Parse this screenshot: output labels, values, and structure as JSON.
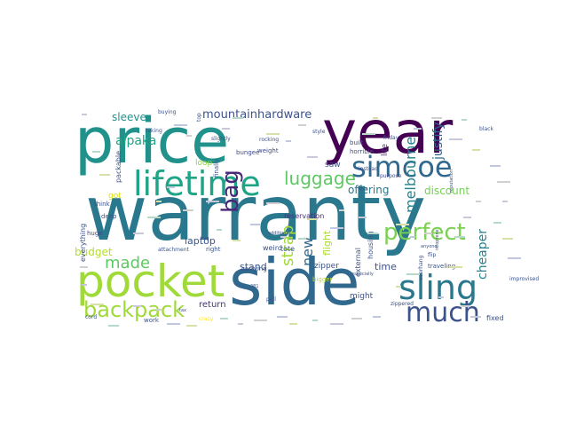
{
  "words": [
    {
      "text": "warranty",
      "color": "#2a788e",
      "rotate": 0
    },
    {
      "text": "price",
      "color": "#21918c",
      "rotate": 0
    },
    {
      "text": "year",
      "color": "#440154",
      "rotate": 0
    },
    {
      "text": "side",
      "color": "#31688e",
      "rotate": 0
    },
    {
      "text": "pocket",
      "color": "#a0da39",
      "rotate": 0
    },
    {
      "text": "lifetime",
      "color": "#20a486",
      "rotate": 0
    },
    {
      "text": "simcoe",
      "color": "#31688e",
      "rotate": 0
    },
    {
      "text": "sling",
      "color": "#2a788e",
      "rotate": 0
    },
    {
      "text": "much",
      "color": "#3b528b",
      "rotate": 0
    },
    {
      "text": "backpack",
      "color": "#a0da39",
      "rotate": 0
    },
    {
      "text": "perfect",
      "color": "#7ad151",
      "rotate": 0
    },
    {
      "text": "bag",
      "color": "#482878",
      "rotate": 90
    },
    {
      "text": "luggage",
      "color": "#5ec962",
      "rotate": 0
    },
    {
      "text": "made",
      "color": "#5ec962",
      "rotate": 0
    },
    {
      "text": "mountainhardware",
      "color": "#3b528b",
      "rotate": 0
    },
    {
      "text": "strap",
      "color": "#a0da39",
      "rotate": 90
    },
    {
      "text": "new",
      "color": "#31688e",
      "rotate": 90
    },
    {
      "text": "melbourne",
      "color": "#26828e",
      "rotate": 90
    },
    {
      "text": "justify",
      "color": "#31688e",
      "rotate": 90
    },
    {
      "text": "cheaper",
      "color": "#26828e",
      "rotate": 90
    },
    {
      "text": "discount",
      "color": "#75d054",
      "rotate": 0
    },
    {
      "text": "offering",
      "color": "#2a788e",
      "rotate": 0
    },
    {
      "text": "alpaka",
      "color": "#20a486",
      "rotate": 0
    },
    {
      "text": "sleeve",
      "color": "#21918c",
      "rotate": 0
    },
    {
      "text": "laptop",
      "color": "#39568c",
      "rotate": 0
    },
    {
      "text": "flight",
      "color": "#addc30",
      "rotate": 90
    },
    {
      "text": "time",
      "color": "#3b528b",
      "rotate": 0
    },
    {
      "text": "stand",
      "color": "#39568c",
      "rotate": 0
    },
    {
      "text": "budget",
      "color": "#b5de2b",
      "rotate": 0
    },
    {
      "text": "return",
      "color": "#46327e",
      "rotate": 0
    },
    {
      "text": "got",
      "color": "#d8e219",
      "rotate": 0
    },
    {
      "text": "zipper",
      "color": "#39568c",
      "rotate": 0
    },
    {
      "text": "might",
      "color": "#3b528b",
      "rotate": 0
    },
    {
      "text": "saw",
      "color": "#3b528b",
      "rotate": 0
    },
    {
      "text": "lite",
      "color": "#472d7b",
      "rotate": 90
    },
    {
      "text": "tote",
      "color": "#3b528b",
      "rotate": 0
    },
    {
      "text": "reservation",
      "color": "#472d7b",
      "rotate": 0
    },
    {
      "text": "packable",
      "color": "#3b528b",
      "rotate": 90
    },
    {
      "text": "loop",
      "color": "#8fd744",
      "rotate": 0
    },
    {
      "text": "finally",
      "color": "#39568c",
      "rotate": 90
    },
    {
      "text": "bungee",
      "color": "#3e4a89",
      "rotate": 0
    },
    {
      "text": "weight",
      "color": "#3e4a89",
      "rotate": 0
    },
    {
      "text": "horrible",
      "color": "#3b528b",
      "rotate": 0
    },
    {
      "text": "built",
      "color": "#3e4a89",
      "rotate": 0
    },
    {
      "text": "purpose",
      "color": "#3e4a89",
      "rotate": 0
    },
    {
      "text": "instead",
      "color": "#3b528b",
      "rotate": 0
    },
    {
      "text": "housing",
      "color": "#39568c",
      "rotate": 90
    },
    {
      "text": "external",
      "color": "#3b528b",
      "rotate": 90
    },
    {
      "text": "weird",
      "color": "#3b528b",
      "rotate": 0
    },
    {
      "text": "everything",
      "color": "#3b528b",
      "rotate": 90
    },
    {
      "text": "huge",
      "color": "#3e4a89",
      "rotate": 0
    },
    {
      "text": "think",
      "color": "#3b528b",
      "rotate": 0
    },
    {
      "text": "deep",
      "color": "#3b528b",
      "rotate": 0
    },
    {
      "text": "work",
      "color": "#3b528b",
      "rotate": 0
    },
    {
      "text": "right",
      "color": "#3b528b",
      "rotate": 0
    },
    {
      "text": "carrying",
      "color": "#3b528b",
      "rotate": 0
    },
    {
      "text": "crazy",
      "color": "#fde725",
      "rotate": 0
    },
    {
      "text": "bigger",
      "color": "#bddf26",
      "rotate": 0
    },
    {
      "text": "zippered",
      "color": "#3e4a89",
      "rotate": 0
    },
    {
      "text": "traveling",
      "color": "#3b528b",
      "rotate": 0
    },
    {
      "text": "overhang",
      "color": "#3b528b",
      "rotate": 90
    },
    {
      "text": "fixed",
      "color": "#3b528b",
      "rotate": 0
    },
    {
      "text": "flip",
      "color": "#3b528b",
      "rotate": 0
    },
    {
      "text": "style",
      "color": "#3b528b",
      "rotate": 0
    },
    {
      "text": "friday",
      "color": "#3b528b",
      "rotate": 0
    },
    {
      "text": "black",
      "color": "#3b528b",
      "rotate": 0
    },
    {
      "text": "slightly",
      "color": "#3b528b",
      "rotate": 0
    },
    {
      "text": "taking",
      "color": "#3b528b",
      "rotate": 0
    },
    {
      "text": "buying",
      "color": "#3b528b",
      "rotate": 0
    },
    {
      "text": "rocking",
      "color": "#3b528b",
      "rotate": 0
    },
    {
      "text": "pull",
      "color": "#3b528b",
      "rotate": 0
    },
    {
      "text": "improvised",
      "color": "#3b528b",
      "rotate": 0
    },
    {
      "text": "top",
      "color": "#3b528b",
      "rotate": 90
    },
    {
      "text": "cord",
      "color": "#3b528b",
      "rotate": 0
    },
    {
      "text": "attachment",
      "color": "#3b528b",
      "rotate": 0
    },
    {
      "text": "additional",
      "color": "#3b528b",
      "rotate": 0
    },
    {
      "text": "281",
      "color": "#3b528b",
      "rotate": 0
    },
    {
      "text": "tax",
      "color": "#3b528b",
      "rotate": 0
    },
    {
      "text": "especially",
      "color": "#3b528b",
      "rotate": 0
    },
    {
      "text": "plus",
      "color": "#3b528b",
      "rotate": 0
    },
    {
      "text": "reputation",
      "color": "#3b528b",
      "rotate": 90
    },
    {
      "text": "neoprene",
      "color": "#3b528b",
      "rotate": 90
    },
    {
      "text": "anyone",
      "color": "#3b528b",
      "rotate": 0
    },
    {
      "text": "bag",
      "color": "#3b528b",
      "rotate": 0
    }
  ]
}
